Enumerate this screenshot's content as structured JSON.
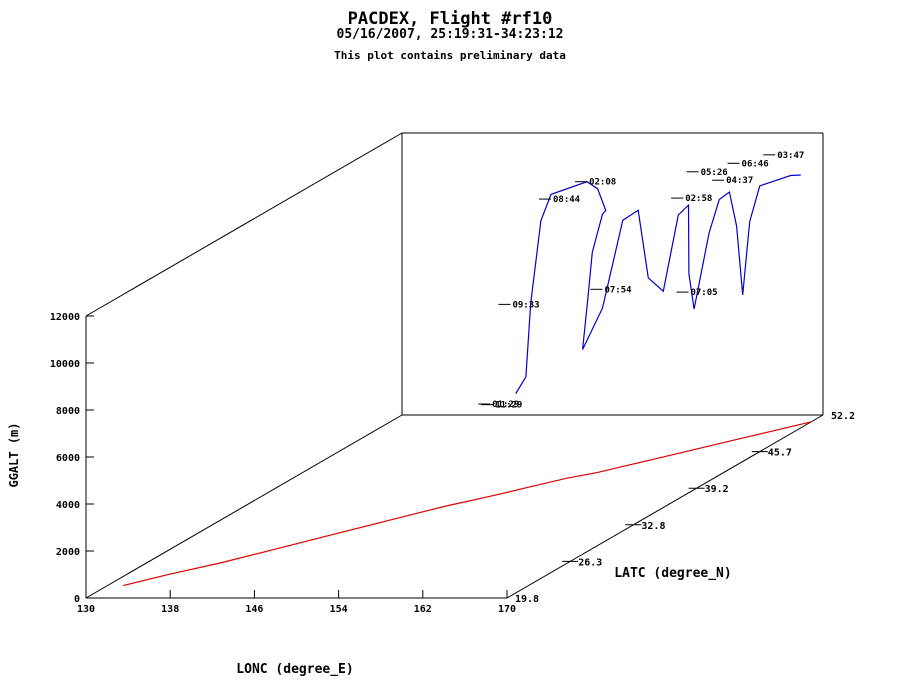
{
  "chart_data": {
    "type": "line",
    "projection": "3d-perspective-box",
    "title": "PACDEX, Flight #rf10",
    "subtitle": "05/16/2007, 25:19:31-34:23:12",
    "note": "This plot contains preliminary data",
    "xlabel": "LONC (degree_E)",
    "ylabel": "LATC (degree_N)",
    "zlabel": "GGALT (m)",
    "xlim": [
      130,
      170
    ],
    "ylim": [
      19.8,
      52.2
    ],
    "zlim": [
      0,
      12000
    ],
    "x_ticks": [
      "130",
      "138",
      "146",
      "154",
      "162",
      "170"
    ],
    "y_ticks": [
      "19.8",
      "26.3",
      "32.8",
      "39.2",
      "45.7",
      "52.2"
    ],
    "z_ticks": [
      "0",
      "2000",
      "4000",
      "6000",
      "8000",
      "10000",
      "12000"
    ],
    "series": [
      {
        "role": "flight-track",
        "color": "#0000cc",
        "points": [
          [
            153.5,
            38.5,
            4200
          ],
          [
            154.0,
            39.0,
            4800
          ],
          [
            154.0,
            39.5,
            7800
          ],
          [
            154.5,
            40.0,
            11200
          ],
          [
            155.0,
            40.5,
            12200
          ],
          [
            157.5,
            41.5,
            12500
          ],
          [
            158.5,
            41.5,
            12200
          ],
          [
            159.0,
            41.8,
            11200
          ],
          [
            158.5,
            42.0,
            11000
          ],
          [
            158.0,
            41.5,
            9500
          ],
          [
            158.0,
            41.0,
            7500
          ],
          [
            158.0,
            40.5,
            5600
          ],
          [
            158.5,
            42.0,
            7000
          ],
          [
            159.5,
            43.0,
            10500
          ],
          [
            160.5,
            43.5,
            10800
          ],
          [
            161.0,
            44.0,
            7800
          ],
          [
            161.5,
            45.0,
            7000
          ],
          [
            162.0,
            46.0,
            10000
          ],
          [
            162.5,
            46.5,
            10300
          ],
          [
            163.0,
            46.0,
            7500
          ],
          [
            163.5,
            46.0,
            6000
          ],
          [
            164.0,
            47.0,
            9000
          ],
          [
            164.5,
            47.5,
            10300
          ],
          [
            165.0,
            48.0,
            10500
          ],
          [
            165.5,
            48.2,
            9000
          ],
          [
            165.8,
            48.5,
            6000
          ],
          [
            166.0,
            49.0,
            9000
          ],
          [
            166.5,
            49.5,
            10400
          ],
          [
            167.5,
            50.0,
            10500
          ],
          [
            168.5,
            50.5,
            10600
          ],
          [
            169.0,
            51.0,
            10500
          ]
        ]
      },
      {
        "role": "ground-projection",
        "color": "#dd0000",
        "points": [
          [
            131.5,
            22.0,
            0
          ],
          [
            134.0,
            24.0,
            0
          ],
          [
            137.0,
            26.0,
            0
          ],
          [
            140.0,
            28.5,
            0
          ],
          [
            143.0,
            31.0,
            0
          ],
          [
            146.0,
            33.5,
            0
          ],
          [
            149.0,
            36.0,
            0
          ],
          [
            152.0,
            38.0,
            0
          ],
          [
            154.0,
            39.5,
            0
          ],
          [
            156.0,
            41.0,
            0
          ],
          [
            158.0,
            42.0,
            0
          ],
          [
            160.0,
            43.5,
            0
          ],
          [
            162.0,
            45.0,
            0
          ],
          [
            164.0,
            46.5,
            0
          ],
          [
            166.0,
            48.0,
            0
          ],
          [
            168.0,
            49.5,
            0
          ],
          [
            170.0,
            51.0,
            0
          ]
        ]
      }
    ],
    "time_labels": [
      {
        "text": "02:08",
        "x": 157.5,
        "y": 41.5,
        "z": 12500
      },
      {
        "text": "08:44",
        "x": 155.0,
        "y": 40.5,
        "z": 12000
      },
      {
        "text": "05:26",
        "x": 163.0,
        "y": 47.0,
        "z": 11600
      },
      {
        "text": "06:46",
        "x": 165.5,
        "y": 48.5,
        "z": 11600
      },
      {
        "text": "03:47",
        "x": 167.5,
        "y": 50.0,
        "z": 11600
      },
      {
        "text": "04:37",
        "x": 164.5,
        "y": 48.0,
        "z": 11000
      },
      {
        "text": "02:58",
        "x": 162.0,
        "y": 46.5,
        "z": 10600
      },
      {
        "text": "09:33",
        "x": 153.0,
        "y": 38.5,
        "z": 8000
      },
      {
        "text": "07:54",
        "x": 158.5,
        "y": 42.0,
        "z": 7800
      },
      {
        "text": "07:05",
        "x": 162.5,
        "y": 46.5,
        "z": 6600
      },
      {
        "text": "01:29",
        "x": 152.0,
        "y": 37.5,
        "z": 4000
      },
      {
        "text": "11:29",
        "x": 152.2,
        "y": 37.6,
        "z": 3950
      }
    ]
  }
}
